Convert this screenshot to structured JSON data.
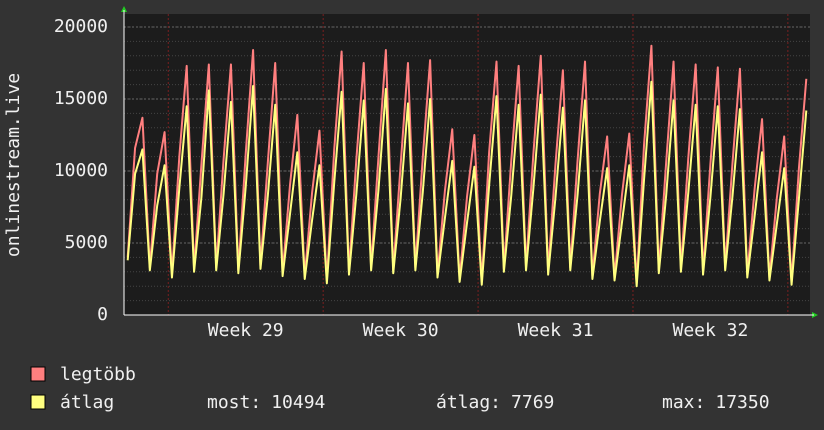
{
  "chart_data": {
    "type": "line",
    "ylabel": "onlinestream.live",
    "ylim": [
      0,
      20000
    ],
    "yticks": [
      0,
      5000,
      10000,
      15000,
      20000
    ],
    "minor_step": 1000,
    "grid": true,
    "categories": [
      null,
      null,
      null,
      null,
      null,
      null,
      null,
      null,
      null,
      null,
      null,
      null,
      null,
      null,
      null,
      null,
      "Week 29",
      null,
      null,
      null,
      null,
      null,
      null,
      null,
      null,
      null,
      null,
      null,
      null,
      null,
      null,
      null,
      null,
      null,
      null,
      null,
      null,
      "Week 30",
      null,
      null,
      null,
      null,
      null,
      null,
      null,
      null,
      null,
      null,
      null,
      null,
      null,
      null,
      null,
      null,
      null,
      null,
      null,
      null,
      "Week 31",
      null,
      null,
      null,
      null,
      null,
      null,
      null,
      null,
      null,
      null,
      null,
      null,
      null,
      null,
      null,
      null,
      null,
      null,
      null,
      null,
      "Week 32",
      null,
      null,
      null,
      null,
      null,
      null,
      null,
      null,
      null,
      null,
      null,
      null,
      null
    ],
    "series": [
      {
        "name": "legtöbb",
        "color": "#ff7f7f",
        "values": [
          4000,
          11600,
          13700,
          3300,
          9800,
          12700,
          2800,
          11000,
          17300,
          3200,
          10500,
          17400,
          3300,
          10800,
          17400,
          3100,
          11200,
          18400,
          3400,
          10600,
          17500,
          2900,
          9000,
          13900,
          2700,
          8500,
          12800,
          2400,
          11500,
          18300,
          3000,
          10800,
          17500,
          3300,
          11000,
          18400,
          3100,
          10400,
          17500,
          3300,
          10900,
          17700,
          2800,
          8600,
          12900,
          2500,
          8200,
          12500,
          2300,
          11300,
          17600,
          3200,
          10700,
          17300,
          3300,
          11200,
          18000,
          3000,
          10500,
          17000,
          3300,
          10800,
          17600,
          2700,
          8400,
          12400,
          2600,
          8300,
          12600,
          2200,
          11800,
          18700,
          3100,
          10600,
          17600,
          3200,
          10900,
          17400,
          3000,
          10500,
          17200,
          3300,
          10600,
          17100,
          2800,
          8800,
          13600,
          2600,
          8100,
          12400,
          2300,
          10200,
          16400
        ]
      },
      {
        "name": "átlag",
        "color": "#ffff80",
        "values": [
          3800,
          9800,
          11500,
          3100,
          7600,
          10400,
          2600,
          8800,
          14500,
          3000,
          8200,
          15600,
          3100,
          8400,
          14800,
          2900,
          8900,
          15900,
          3200,
          8300,
          14600,
          2700,
          7000,
          11300,
          2500,
          6600,
          10400,
          2200,
          9200,
          15500,
          2800,
          8400,
          14900,
          3100,
          8700,
          15700,
          2900,
          8100,
          14700,
          3100,
          8500,
          15000,
          2600,
          6700,
          10700,
          2300,
          6400,
          10300,
          2100,
          9000,
          15200,
          3000,
          8300,
          14600,
          3100,
          8800,
          15300,
          2800,
          8200,
          14400,
          3100,
          8400,
          14900,
          2500,
          6500,
          10200,
          2400,
          6400,
          10400,
          2000,
          9400,
          16200,
          2900,
          8300,
          14900,
          3000,
          8500,
          14600,
          2800,
          8200,
          14500,
          3100,
          8300,
          14300,
          2600,
          6900,
          11300,
          2400,
          6300,
          10200,
          2100,
          8100,
          14200
        ]
      }
    ],
    "stats": [
      {
        "label": "most:",
        "value": 10494
      },
      {
        "label": "átlag:",
        "value": 7769
      },
      {
        "label": "max:",
        "value": 17350
      }
    ]
  }
}
